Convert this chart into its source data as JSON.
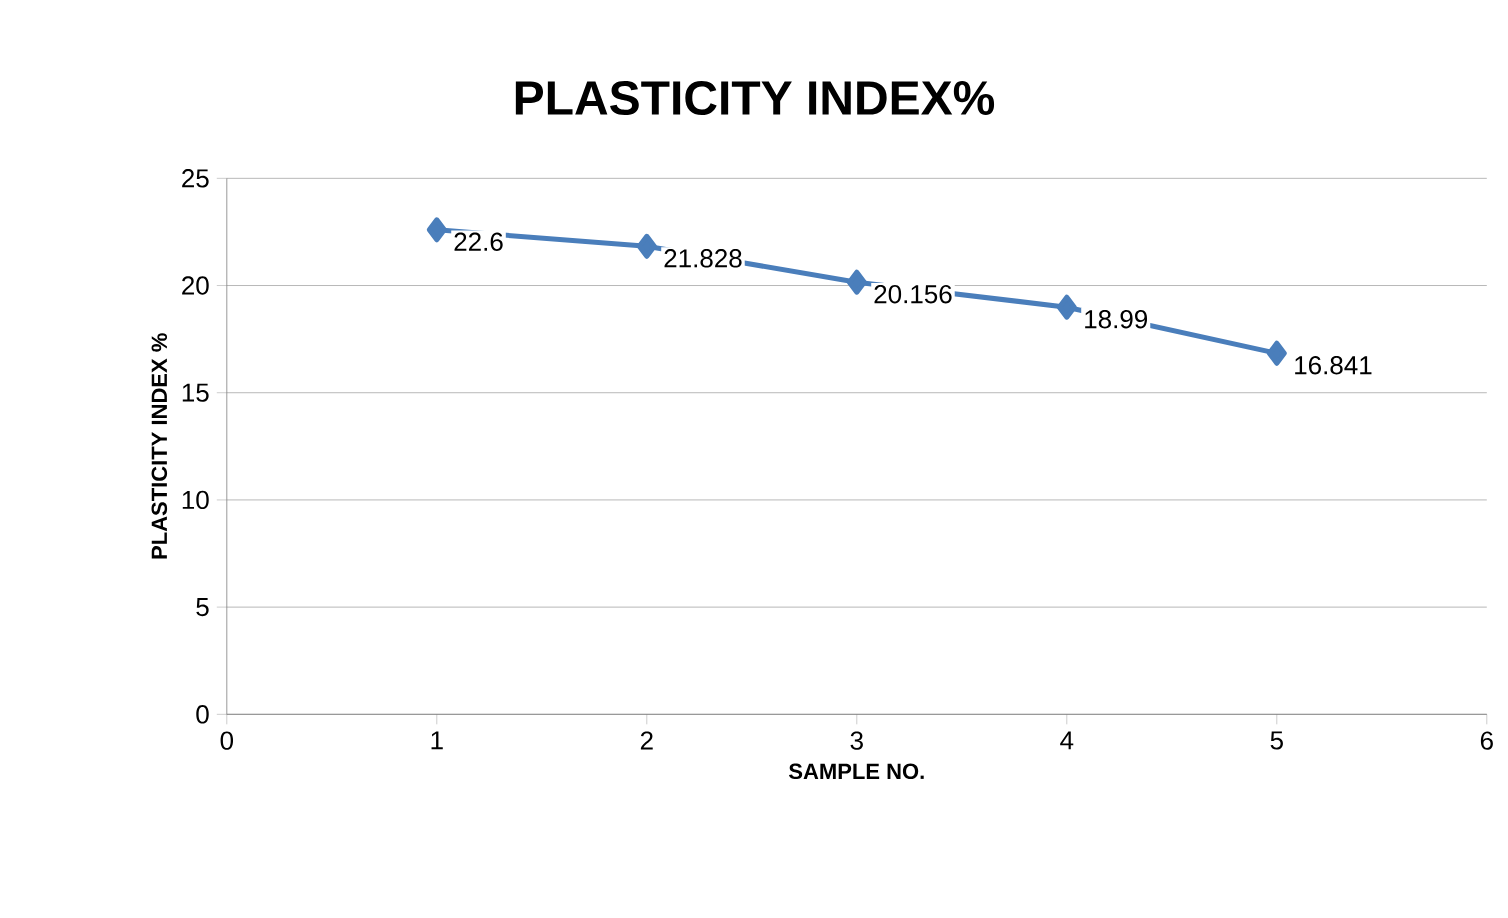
{
  "chart_data": {
    "type": "line",
    "title": "PLASTICITY INDEX%",
    "xlabel": "SAMPLE NO.",
    "ylabel": "PLASTICITY INDEX %",
    "x": [
      1,
      2,
      3,
      4,
      5
    ],
    "series": [
      {
        "color": "#4a7ebb",
        "values": [
          22.6,
          21.828,
          20.156,
          18.99,
          16.841
        ]
      }
    ],
    "value_labels": [
      "22.6",
      "21.828",
      "20.156",
      "18.99",
      "16.841"
    ],
    "xlim": [
      0,
      6
    ],
    "xticks": [
      0,
      1,
      2,
      3,
      4,
      5,
      6
    ],
    "ylim": [
      0,
      25
    ],
    "yticks": [
      0,
      5,
      10,
      15,
      20,
      25
    ],
    "grid": "y",
    "marker": "diamond",
    "line_style": "solid"
  }
}
